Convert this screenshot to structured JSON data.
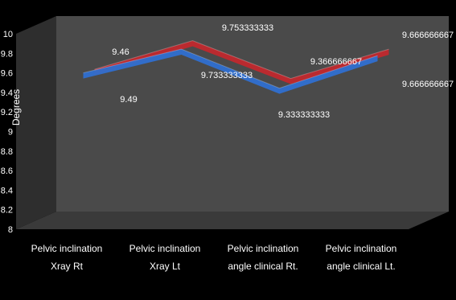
{
  "chart_data": {
    "type": "line",
    "title": "",
    "xlabel": "",
    "ylabel": "Degrees",
    "ylim": [
      8,
      10
    ],
    "yticks": [
      8,
      8.2,
      8.4,
      8.6,
      8.8,
      9,
      9.2,
      9.4,
      9.6,
      9.8,
      10
    ],
    "categories": [
      [
        "Pelvic inclination",
        "Xray  Rt"
      ],
      [
        "Pelvic inclination",
        "Xray  Lt"
      ],
      [
        "Pelvic inclination",
        "angle clinical Rt."
      ],
      [
        "Pelvic inclination",
        "angle clinical Lt."
      ]
    ],
    "series": [
      {
        "color": "#2f6fd0",
        "values": [
          9.49,
          9.733333333,
          9.333333333,
          9.666666667
        ],
        "labels": [
          "9.49",
          "9.733333333",
          "9.333333333",
          "9.666666667"
        ]
      },
      {
        "color": "#c0282d",
        "values": [
          9.46,
          9.753333333,
          9.366666667,
          9.666666667
        ],
        "labels": [
          "9.46",
          "9.753333333",
          "9.366666667",
          "9.666666667"
        ]
      }
    ],
    "grid": false,
    "legend": "none",
    "colors": {
      "background": "#000000",
      "back_wall": "#4a4a4a",
      "floor": "#3a3a3a",
      "text": "#ffffff"
    }
  }
}
